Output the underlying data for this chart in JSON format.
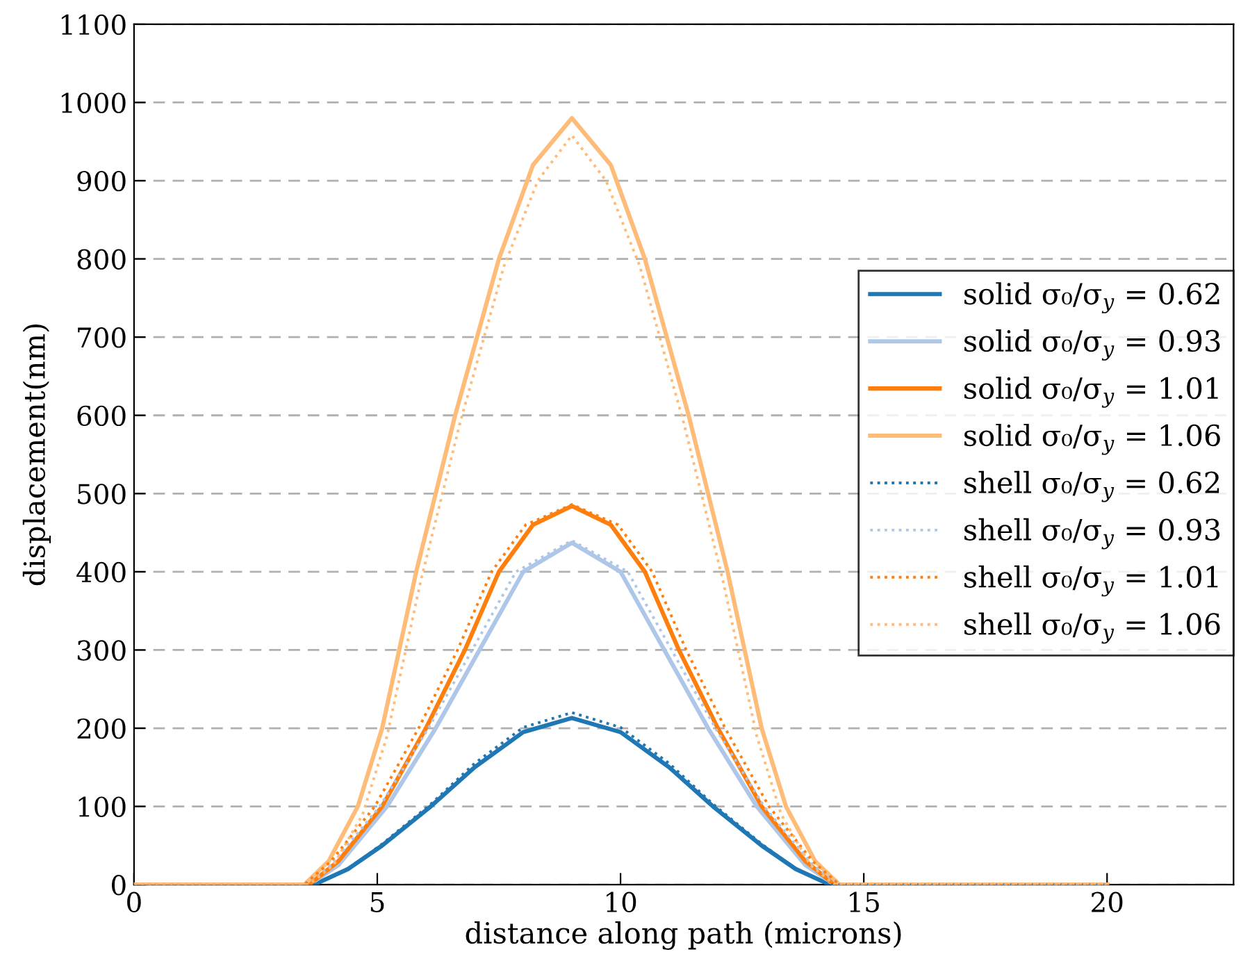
{
  "chart_data": {
    "type": "line",
    "xlabel": "distance along path (microns)",
    "ylabel": "displacement(nm)",
    "xlim": [
      0,
      22.6
    ],
    "xticks": [
      0,
      5,
      10,
      15,
      20
    ],
    "ylim": [
      0,
      1100
    ],
    "yticks": [
      0,
      100,
      200,
      300,
      400,
      500,
      600,
      700,
      800,
      900,
      1000,
      1100
    ],
    "grid": "y",
    "legend": "right",
    "marker": "none",
    "series": [
      {
        "name": "solid σ₀/σ$_{y}$ = 0.62",
        "color": "#1f77b4",
        "line_style": "solid",
        "x": [
          0,
          3.7,
          4.4,
          5.1,
          6.1,
          7,
          8,
          9,
          10,
          11,
          11.9,
          12.9,
          13.6,
          14.3,
          20
        ],
        "values": [
          0,
          0,
          20,
          50,
          100,
          150,
          195,
          213,
          195,
          150,
          100,
          50,
          20,
          0,
          0
        ]
      },
      {
        "name": "solid σ₀/σ$_{y}$ = 0.93",
        "color": "#aec7e8",
        "line_style": "solid",
        "x": [
          0,
          3.6,
          4.2,
          5.2,
          6.2,
          7.1,
          8,
          9,
          10,
          10.9,
          11.8,
          12.8,
          13.8,
          14.4,
          20
        ],
        "values": [
          0,
          0,
          25,
          100,
          200,
          300,
          400,
          437,
          400,
          300,
          200,
          100,
          25,
          0,
          0
        ]
      },
      {
        "name": "solid σ₀/σ$_{y}$ = 1.01",
        "color": "#ff7f0e",
        "line_style": "solid",
        "x": [
          0,
          3.6,
          4.2,
          5.1,
          6,
          6.8,
          7.5,
          8.2,
          9,
          9.8,
          10.5,
          11.2,
          12,
          12.9,
          13.8,
          14.4,
          20
        ],
        "values": [
          0,
          0,
          30,
          100,
          200,
          300,
          400,
          460,
          484,
          460,
          400,
          300,
          200,
          100,
          30,
          0,
          0
        ]
      },
      {
        "name": "solid σ₀/σ$_{y}$ = 1.06",
        "color": "#ffbb78",
        "line_style": "solid",
        "x": [
          0,
          3.5,
          4,
          4.6,
          5.1,
          5.8,
          6.6,
          7.5,
          8.2,
          9,
          9.8,
          10.5,
          11.4,
          12.2,
          12.9,
          13.4,
          14,
          14.5,
          20
        ],
        "values": [
          0,
          0,
          30,
          100,
          200,
          400,
          600,
          800,
          920,
          980,
          920,
          800,
          600,
          400,
          200,
          100,
          30,
          0,
          0
        ]
      },
      {
        "name": "shell σ₀/σ$_{y}$ = 0.62",
        "color": "#1f77b4",
        "line_style": "dotted",
        "x": [
          0,
          3.7,
          4.4,
          5.1,
          6.1,
          7,
          8,
          9,
          10,
          11,
          11.9,
          12.9,
          13.6,
          14.3,
          20
        ],
        "values": [
          0,
          0,
          20,
          52,
          103,
          155,
          201,
          220,
          201,
          155,
          103,
          52,
          20,
          0,
          0
        ]
      },
      {
        "name": "shell σ₀/σ$_{y}$ = 0.93",
        "color": "#aec7e8",
        "line_style": "dotted",
        "x": [
          0,
          3.5,
          4.05,
          5.05,
          6.05,
          6.95,
          7.85,
          9,
          10.15,
          11.05,
          11.95,
          12.95,
          13.95,
          14.5,
          20
        ],
        "values": [
          0,
          0,
          25,
          100,
          200,
          300,
          400,
          440,
          400,
          300,
          200,
          100,
          25,
          0,
          0
        ]
      },
      {
        "name": "shell σ₀/σ$_{y}$ = 1.01",
        "color": "#ff7f0e",
        "line_style": "dotted",
        "x": [
          0,
          3.5,
          4.05,
          4.95,
          5.85,
          6.65,
          7.35,
          8.05,
          9,
          9.95,
          10.65,
          11.35,
          12.15,
          13.05,
          13.95,
          14.5,
          20
        ],
        "values": [
          0,
          0,
          30,
          100,
          200,
          300,
          400,
          460,
          486,
          460,
          400,
          300,
          200,
          100,
          30,
          0,
          0
        ]
      },
      {
        "name": "shell σ₀/σ$_{y}$ = 1.06",
        "color": "#ffbb78",
        "line_style": "dotted",
        "x": [
          0,
          3.6,
          4.1,
          4.7,
          5.2,
          5.9,
          6.7,
          7.6,
          8.3,
          9,
          9.7,
          10.4,
          11.3,
          12.1,
          12.8,
          13.3,
          13.9,
          14.4,
          20
        ],
        "values": [
          0,
          0,
          25,
          90,
          190,
          390,
          590,
          790,
          900,
          958,
          900,
          790,
          590,
          390,
          190,
          90,
          25,
          0,
          0
        ]
      }
    ]
  }
}
